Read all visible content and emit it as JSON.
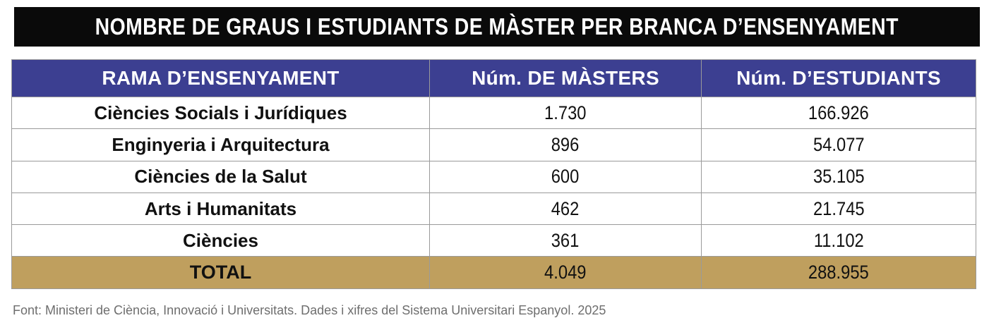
{
  "title": "NOMBRE DE GRAUS I ESTUDIANTS DE MÀSTER PER BRANCA D’ENSENYAMENT",
  "chart_data": {
    "type": "table",
    "columns": [
      "RAMA D’ENSENYAMENT",
      "Núm. DE MÀSTERS",
      "Núm. D’ESTUDIANTS"
    ],
    "rows": [
      [
        "Ciències Socials i Jurídiques",
        "1.730",
        "166.926"
      ],
      [
        "Enginyeria i Arquitectura",
        "896",
        "54.077"
      ],
      [
        "Ciències de la Salut",
        "600",
        "35.105"
      ],
      [
        "Arts i Humanitats",
        "462",
        "21.745"
      ],
      [
        "Ciències",
        "361",
        "11.102"
      ]
    ],
    "total": [
      "TOTAL",
      "4.049",
      "288.955"
    ]
  },
  "source": "Font: Ministeri de Ciència, Innovació i Universitats. Dades i xifres del Sistema Universitari Espanyol. 2025",
  "colors": {
    "title_background": "#0a0a0a",
    "header_background": "#3c3f91",
    "total_background": "#bf9f5e",
    "border": "#9a9a9a"
  }
}
